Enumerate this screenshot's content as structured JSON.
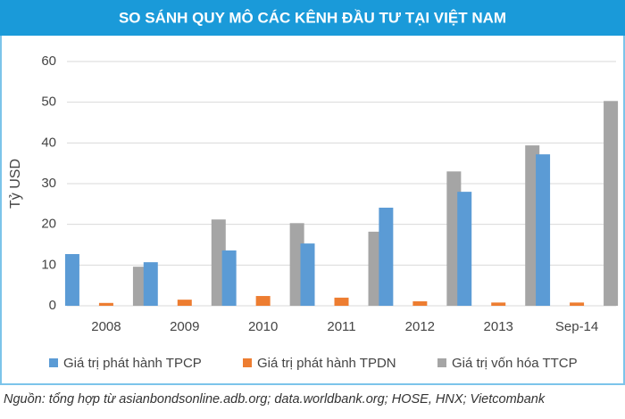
{
  "chart_data": {
    "type": "bar",
    "title": "SO SÁNH QUY MÔ CÁC KÊNH ĐẦU TƯ TẠI VIỆT NAM",
    "y_label": "Tỷ USD",
    "categories": [
      "2008",
      "2009",
      "2010",
      "2011",
      "2012",
      "2013",
      "Sep-14"
    ],
    "series": [
      {
        "name": "Giá trị phát hành TPCP",
        "color": "#5b9bd5",
        "values": [
          12.7,
          10.7,
          13.6,
          15.3,
          24.1,
          28.0,
          37.2
        ]
      },
      {
        "name": "Giá trị phát hành TPDN",
        "color": "#ed7d31",
        "values": [
          0.7,
          1.5,
          2.4,
          2.0,
          1.1,
          0.8,
          0.8
        ]
      },
      {
        "name": "Giá trị vốn hóa TTCP",
        "color": "#a5a5a5",
        "values": [
          9.6,
          21.2,
          20.3,
          18.2,
          33.0,
          39.4,
          50.3
        ]
      }
    ],
    "ylim": [
      0,
      60
    ],
    "yticks": [
      0,
      10,
      20,
      30,
      40,
      50,
      60
    ],
    "grid": true,
    "legend": "bottom",
    "note": "Nguồn: tổng hợp từ asianbondsonline.adb.org; data.worldbank.org; HOSE, HNX; Vietcombank"
  }
}
